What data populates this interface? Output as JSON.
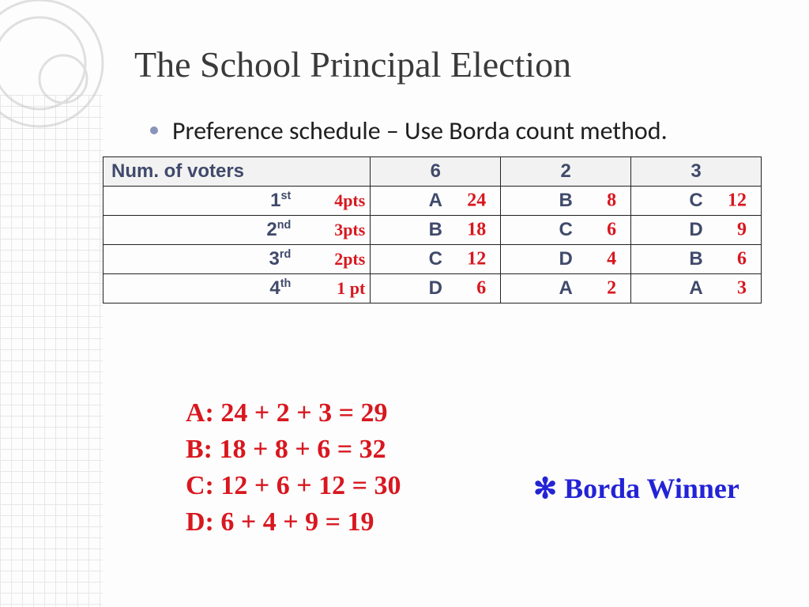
{
  "title": "The School Principal Election",
  "bullet": "Preference schedule – Use Borda count method.",
  "table": {
    "header_label": "Num. of voters",
    "voter_counts": [
      "6",
      "2",
      "3"
    ],
    "rows": [
      {
        "rank_html": "1",
        "rank_suffix": "st",
        "pts_label": "4pts",
        "cells": [
          "A",
          "B",
          "C"
        ],
        "cell_notes": [
          "24",
          "8",
          "12"
        ]
      },
      {
        "rank_html": "2",
        "rank_suffix": "nd",
        "pts_label": "3pts",
        "cells": [
          "B",
          "C",
          "D"
        ],
        "cell_notes": [
          "18",
          "6",
          "9"
        ]
      },
      {
        "rank_html": "3",
        "rank_suffix": "rd",
        "pts_label": "2pts",
        "cells": [
          "C",
          "D",
          "B"
        ],
        "cell_notes": [
          "12",
          "4",
          "6"
        ]
      },
      {
        "rank_html": "4",
        "rank_suffix": "th",
        "pts_label": "1 pt",
        "cells": [
          "D",
          "A",
          "A"
        ],
        "cell_notes": [
          "6",
          "2",
          "3"
        ]
      }
    ]
  },
  "calculations": [
    "A: 24 + 2 + 3 = 29",
    "B: 18 + 8 + 6 = 32",
    "C: 12 + 6 + 12 = 30",
    "D: 6 + 4 + 9 = 19"
  ],
  "winner_note": "✻ Borda Winner",
  "colors": {
    "hand_red": "#d8171f",
    "hand_blue": "#2323d6",
    "table_text": "#404a6b",
    "table_header_bg": "#f2f2f2",
    "table_border": "#222222",
    "bullet_dot": "#8a93b9",
    "background": "#fdfdfd",
    "decor_grid": "#d6d6d6"
  },
  "fontsizes": {
    "title": 46,
    "bullet": 32,
    "table": 24,
    "hand_cell": 24,
    "hand_pts": 22,
    "calc": 34,
    "winner": 36
  }
}
